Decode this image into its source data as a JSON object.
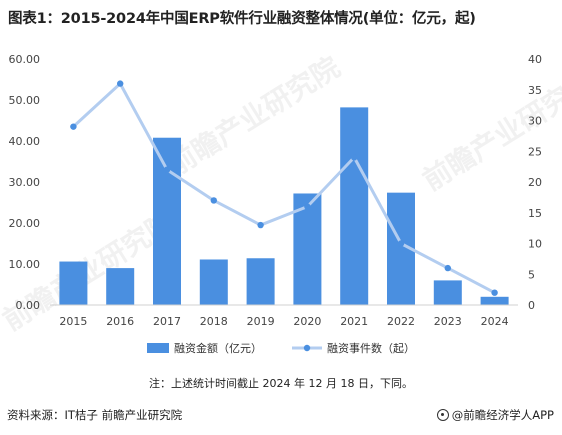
{
  "title": "图表1：2015-2024年中国ERP软件行业融资整体情况(单位：亿元，起)",
  "chart_data": {
    "type": "bar",
    "categories": [
      "2015",
      "2016",
      "2017",
      "2018",
      "2019",
      "2020",
      "2021",
      "2022",
      "2023",
      "2024"
    ],
    "series": [
      {
        "name": "融资金额（亿元）",
        "type": "bar",
        "axis": "left",
        "values": [
          10.6,
          9.0,
          40.8,
          11.1,
          11.4,
          27.2,
          48.2,
          27.4,
          6.0,
          2.0
        ],
        "color": "#4a8fe0"
      },
      {
        "name": "融资事件数（起）",
        "type": "line",
        "axis": "right",
        "values": [
          29,
          36,
          22,
          17,
          13,
          16,
          24,
          10,
          6,
          2
        ],
        "color": "#b3cdf0"
      }
    ],
    "left_axis": {
      "ylim": [
        0,
        60
      ],
      "ticks": [
        "0.00",
        "10.00",
        "20.00",
        "30.00",
        "40.00",
        "50.00",
        "60.00"
      ]
    },
    "right_axis": {
      "ylim": [
        0,
        40
      ],
      "ticks": [
        "0",
        "5",
        "10",
        "15",
        "20",
        "25",
        "30",
        "35",
        "40"
      ]
    },
    "grid": false,
    "legend_position": "bottom"
  },
  "note": "注：上述统计时间截止 2024 年 12 月 18 日，下同。",
  "source": "资料来源：IT桔子 前瞻产业研究院",
  "brand": "@前瞻经济学人APP",
  "watermark_text": "前瞻产业研究院"
}
